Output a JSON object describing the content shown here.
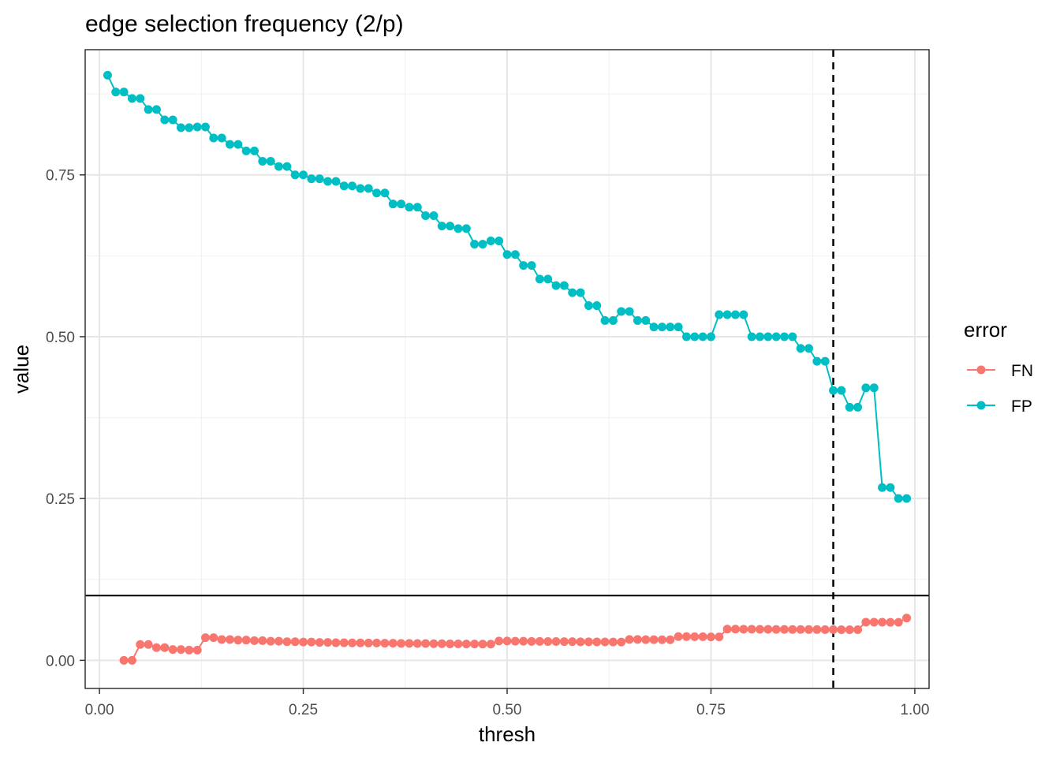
{
  "chart_data": {
    "type": "line",
    "title": "edge selection frequency (2/p)",
    "xlabel": "thresh",
    "ylabel": "value",
    "xlim": [
      -0.0175,
      2.0475
    ],
    "ylim": [
      -0.0434,
      0.9434
    ],
    "x_ticks": [
      0.0,
      0.25,
      0.5,
      0.75,
      1.0
    ],
    "x_tick_labels": [
      "0.00",
      "0.25",
      "0.50",
      "0.75",
      "1.00"
    ],
    "y_ticks": [
      0.0,
      0.25,
      0.5,
      0.75
    ],
    "y_tick_labels": [
      "0.00",
      "0.25",
      "0.50",
      "0.75"
    ],
    "grid": true,
    "reference_lines": {
      "hline_y": 0.1,
      "vline_x": 0.9,
      "vline_style": "dashed"
    },
    "legend": {
      "title": "error",
      "position": "right",
      "entries": [
        "FN",
        "FP"
      ]
    },
    "colors": {
      "FN": "#F8766D",
      "FP": "#00BFC4"
    },
    "series": [
      {
        "name": "FP",
        "x": [
          0.01,
          0.02,
          0.03,
          0.04,
          0.05,
          0.06,
          0.07,
          0.08,
          0.09,
          0.1,
          0.11,
          0.12,
          0.13,
          0.14,
          0.15,
          0.16,
          0.17,
          0.18,
          0.19,
          0.2,
          0.21,
          0.22,
          0.23,
          0.24,
          0.25,
          0.26,
          0.27,
          0.28,
          0.29,
          0.3,
          0.31,
          0.32,
          0.33,
          0.34,
          0.35,
          0.36,
          0.37,
          0.38,
          0.39,
          0.4,
          0.41,
          0.42,
          0.43,
          0.44,
          0.45,
          0.46,
          0.47,
          0.48,
          0.49,
          0.5,
          0.51,
          0.52,
          0.53,
          0.54,
          0.55,
          0.56,
          0.57,
          0.58,
          0.59,
          0.6,
          0.61,
          0.62,
          0.63,
          0.64,
          0.65,
          0.66,
          0.67,
          0.68,
          0.69,
          0.7,
          0.71,
          0.72,
          0.73,
          0.74,
          0.75,
          0.76,
          0.77,
          0.78,
          0.79,
          0.8,
          0.81,
          0.82,
          0.83,
          0.84,
          0.85,
          0.86,
          0.87,
          0.88,
          0.89,
          0.9,
          0.91,
          0.92,
          0.93,
          0.94,
          0.95,
          0.96,
          0.97,
          0.98,
          0.99
        ],
        "y": [
          0.904,
          0.878,
          0.878,
          0.868,
          0.868,
          0.851,
          0.851,
          0.835,
          0.835,
          0.823,
          0.823,
          0.824,
          0.824,
          0.807,
          0.807,
          0.797,
          0.797,
          0.787,
          0.787,
          0.771,
          0.771,
          0.763,
          0.763,
          0.75,
          0.75,
          0.744,
          0.744,
          0.74,
          0.74,
          0.733,
          0.733,
          0.729,
          0.729,
          0.722,
          0.722,
          0.705,
          0.705,
          0.7,
          0.7,
          0.687,
          0.687,
          0.671,
          0.671,
          0.667,
          0.667,
          0.643,
          0.643,
          0.648,
          0.648,
          0.627,
          0.627,
          0.61,
          0.61,
          0.589,
          0.589,
          0.579,
          0.579,
          0.568,
          0.568,
          0.548,
          0.548,
          0.525,
          0.525,
          0.539,
          0.539,
          0.525,
          0.525,
          0.515,
          0.515,
          0.515,
          0.515,
          0.5,
          0.5,
          0.5,
          0.5,
          0.534,
          0.534,
          0.534,
          0.534,
          0.5,
          0.5,
          0.5,
          0.5,
          0.5,
          0.5,
          0.482,
          0.482,
          0.462,
          0.462,
          0.417,
          0.417,
          0.391,
          0.391,
          0.421,
          0.421,
          0.267,
          0.267,
          0.25,
          0.25
        ]
      },
      {
        "name": "FN",
        "x": [
          0.03,
          0.04,
          0.05,
          0.06,
          0.07,
          0.08,
          0.09,
          0.1,
          0.11,
          0.12,
          0.13,
          0.14,
          0.15,
          0.16,
          0.17,
          0.18,
          0.19,
          0.2,
          0.21,
          0.22,
          0.23,
          0.24,
          0.25,
          0.26,
          0.27,
          0.28,
          0.29,
          0.3,
          0.31,
          0.32,
          0.33,
          0.34,
          0.35,
          0.36,
          0.37,
          0.38,
          0.39,
          0.4,
          0.41,
          0.42,
          0.43,
          0.44,
          0.45,
          0.46,
          0.47,
          0.48,
          0.49,
          0.5,
          0.51,
          0.52,
          0.53,
          0.54,
          0.55,
          0.56,
          0.57,
          0.58,
          0.59,
          0.6,
          0.61,
          0.62,
          0.63,
          0.64,
          0.65,
          0.66,
          0.67,
          0.68,
          0.69,
          0.7,
          0.71,
          0.72,
          0.73,
          0.74,
          0.75,
          0.76,
          0.77,
          0.78,
          0.79,
          0.8,
          0.81,
          0.82,
          0.83,
          0.84,
          0.85,
          0.86,
          0.87,
          0.88,
          0.89,
          0.9,
          0.91,
          0.92,
          0.93,
          0.94,
          0.95,
          0.96,
          0.97,
          0.98,
          0.99
        ],
        "y": [
          0.0,
          0.0,
          0.0245,
          0.0245,
          0.0196,
          0.0196,
          0.0167,
          0.0167,
          0.0159,
          0.0159,
          0.035,
          0.035,
          0.0322,
          0.0322,
          0.0313,
          0.0313,
          0.0304,
          0.0304,
          0.0296,
          0.0296,
          0.0288,
          0.0288,
          0.0283,
          0.0283,
          0.0277,
          0.0277,
          0.0272,
          0.0272,
          0.027,
          0.027,
          0.0268,
          0.0268,
          0.0265,
          0.0265,
          0.0262,
          0.0262,
          0.026,
          0.026,
          0.0257,
          0.0257,
          0.0255,
          0.0255,
          0.0253,
          0.0253,
          0.0251,
          0.0251,
          0.0299,
          0.0299,
          0.0296,
          0.0296,
          0.0293,
          0.0293,
          0.0291,
          0.0291,
          0.0289,
          0.0289,
          0.0287,
          0.0287,
          0.0285,
          0.0285,
          0.0283,
          0.0283,
          0.0323,
          0.0323,
          0.032,
          0.032,
          0.0318,
          0.0318,
          0.0367,
          0.0367,
          0.0365,
          0.0365,
          0.0363,
          0.0363,
          0.0483,
          0.0483,
          0.0481,
          0.0481,
          0.048,
          0.048,
          0.0478,
          0.0478,
          0.0477,
          0.0477,
          0.0476,
          0.0476,
          0.0475,
          0.0475,
          0.0474,
          0.0474,
          0.0474,
          0.059,
          0.059,
          0.059,
          0.0588,
          0.0588,
          0.0654
        ]
      }
    ]
  }
}
